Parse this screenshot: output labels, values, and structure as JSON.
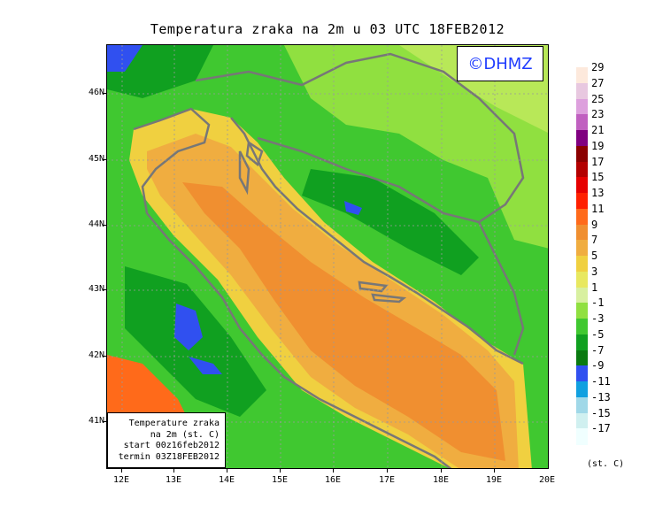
{
  "title": "Temperatura zraka na 2m u 03 UTC 18FEB2012",
  "copyright": "©DHMZ",
  "info_box": {
    "line1": "Temperature zraka",
    "line2": "na 2m (st. C)",
    "line3": "start 00z16feb2012",
    "line4": "termin 03Z18FEB2012"
  },
  "lat_labels": [
    "46N",
    "45N",
    "44N",
    "43N",
    "42N",
    "41N"
  ],
  "lon_labels": [
    "12E",
    "13E",
    "14E",
    "15E",
    "16E",
    "17E",
    "18E",
    "19E",
    "20E"
  ],
  "legend": {
    "labels": [
      "29",
      "27",
      "25",
      "23",
      "21",
      "19",
      "17",
      "15",
      "13",
      "11",
      "9",
      "7",
      "5",
      "3",
      "1",
      "-1",
      "-3",
      "-5",
      "-7",
      "-9",
      "-11",
      "-13",
      "-15",
      "-17"
    ],
    "colors": [
      "#fde9dc",
      "#e8c8e0",
      "#dda0dd",
      "#c060c0",
      "#800080",
      "#8b0000",
      "#b30000",
      "#e60000",
      "#ff2000",
      "#ff6a1a",
      "#f08f30",
      "#f0ad40",
      "#f0d040",
      "#e8e860",
      "#d8f0a0",
      "#90e040",
      "#40c830",
      "#10a020",
      "#0a7a10",
      "#3050f0",
      "#10a0e0",
      "#a0d8e8",
      "#d0f0f0",
      "#f0ffff"
    ],
    "unit": "(st. C)"
  },
  "colors": {
    "sea_warm": "#f08f30",
    "sea_mild": "#f0ad40",
    "coast_band": "#f0d040",
    "land_green": "#40c830",
    "land_light": "#90e040",
    "land_dark": "#10a020",
    "cold_blue": "#3050f0",
    "border": "#777777",
    "watermark_text": "#1f3cff"
  }
}
